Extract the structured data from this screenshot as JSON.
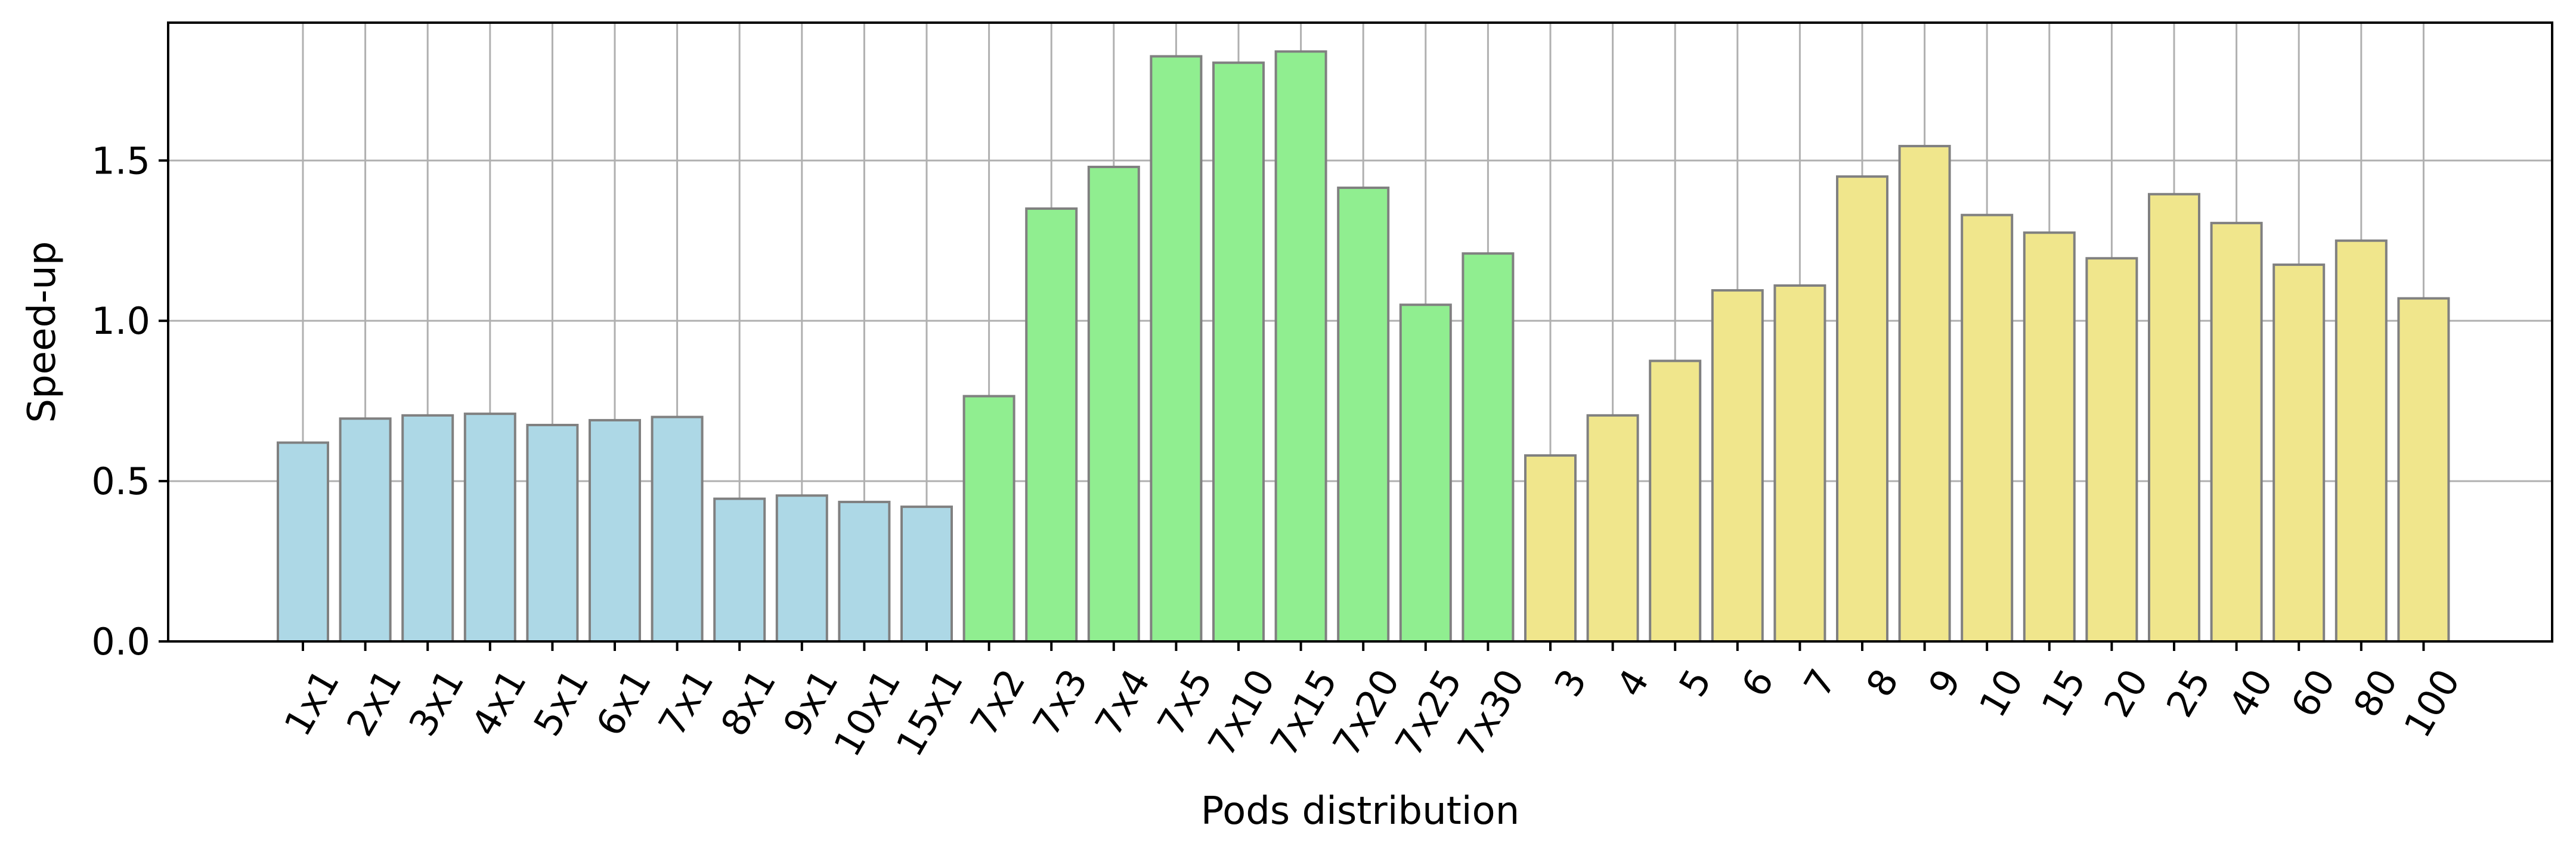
{
  "chart_data": {
    "type": "bar",
    "title": "",
    "xlabel": "Pods distribution",
    "ylabel": "Speed-up",
    "ylim": [
      0,
      1.93
    ],
    "yticks": [
      "0.0",
      "0.5",
      "1.0",
      "1.5"
    ],
    "grid": true,
    "legend": "none",
    "categories": [
      "1x1",
      "2x1",
      "3x1",
      "4x1",
      "5x1",
      "6x1",
      "7x1",
      "8x1",
      "9x1",
      "10x1",
      "15x1",
      "7x2",
      "7x3",
      "7x4",
      "7x5",
      "7x10",
      "7x15",
      "7x20",
      "7x25",
      "7x30",
      "3",
      "4",
      "5",
      "6",
      "7",
      "8",
      "9",
      "10",
      "15",
      "20",
      "25",
      "40",
      "60",
      "80",
      "100"
    ],
    "values": [
      0.62,
      0.695,
      0.705,
      0.71,
      0.675,
      0.69,
      0.7,
      0.445,
      0.455,
      0.435,
      0.42,
      0.765,
      1.35,
      1.48,
      1.825,
      1.805,
      1.84,
      1.415,
      1.05,
      1.21,
      0.58,
      0.705,
      0.875,
      1.095,
      1.11,
      1.45,
      1.545,
      1.33,
      1.275,
      1.195,
      1.395,
      1.305,
      1.175,
      1.25,
      1.07
    ],
    "bar_colors": [
      "#add8e6",
      "#add8e6",
      "#add8e6",
      "#add8e6",
      "#add8e6",
      "#add8e6",
      "#add8e6",
      "#add8e6",
      "#add8e6",
      "#add8e6",
      "#add8e6",
      "#90ee90",
      "#90ee90",
      "#90ee90",
      "#90ee90",
      "#90ee90",
      "#90ee90",
      "#90ee90",
      "#90ee90",
      "#90ee90",
      "#f0e68c",
      "#f0e68c",
      "#f0e68c",
      "#f0e68c",
      "#f0e68c",
      "#f0e68c",
      "#f0e68c",
      "#f0e68c",
      "#f0e68c",
      "#f0e68c",
      "#f0e68c",
      "#f0e68c",
      "#f0e68c",
      "#f0e68c",
      "#f0e68c"
    ],
    "bar_edge_color": "#808080",
    "grid_color": "#b0b0b0"
  }
}
